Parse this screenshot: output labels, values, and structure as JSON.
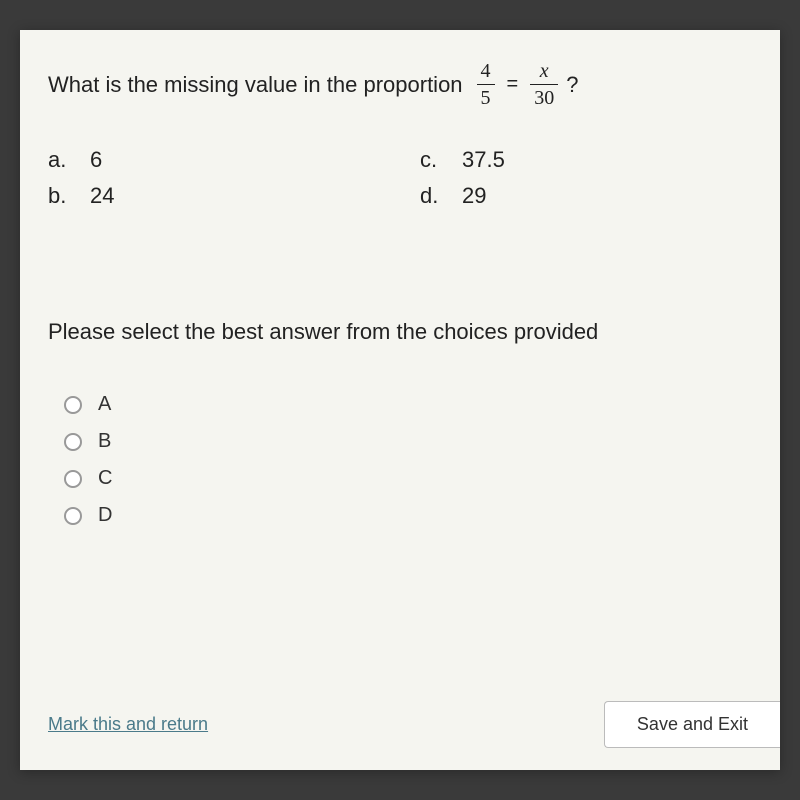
{
  "question": {
    "prompt_text": "What is the missing value in the proportion",
    "fraction1": {
      "numerator": "4",
      "denominator": "5"
    },
    "equals": "=",
    "fraction2": {
      "numerator": "x",
      "denominator": "30"
    },
    "suffix": "?"
  },
  "choices": {
    "a": {
      "letter": "a.",
      "value": "6"
    },
    "b": {
      "letter": "b.",
      "value": "24"
    },
    "c": {
      "letter": "c.",
      "value": "37.5"
    },
    "d": {
      "letter": "d.",
      "value": "29"
    }
  },
  "instruction": "Please select the best answer from the choices provided",
  "radio_options": {
    "a": "A",
    "b": "B",
    "c": "C",
    "d": "D"
  },
  "actions": {
    "mark_return": "Mark this and return",
    "save_exit": "Save and Exit"
  },
  "colors": {
    "panel_bg": "#f5f5f0",
    "outer_bg": "#3a3a3a",
    "text": "#222222",
    "link": "#4a7a8a",
    "radio_border": "#999999",
    "button_border": "#bbbbbb"
  }
}
